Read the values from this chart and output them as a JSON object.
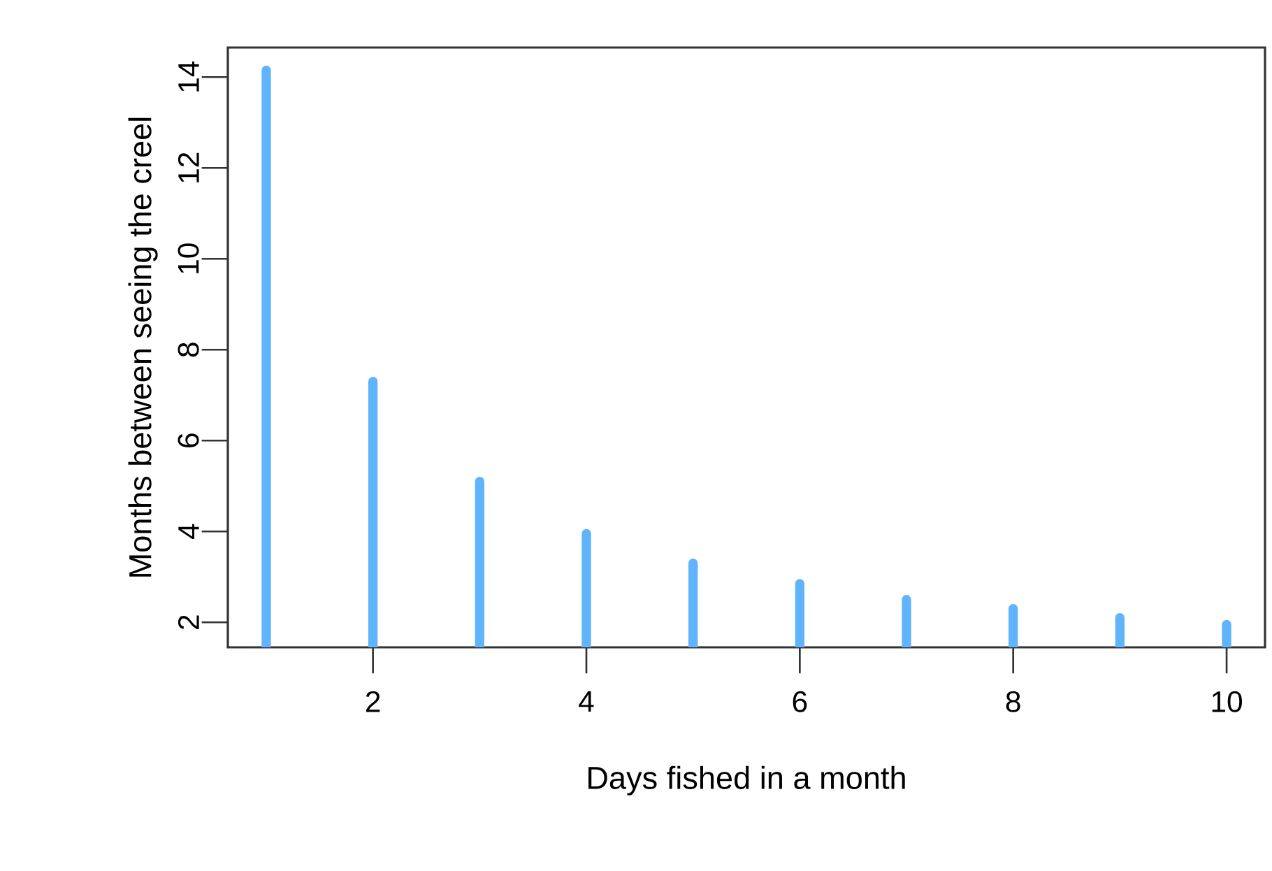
{
  "chart_data": {
    "type": "bar",
    "xlabel": "Days fished in a month",
    "ylabel": "Months between seeing the creel",
    "x": [
      1,
      2,
      3,
      4,
      5,
      6,
      7,
      8,
      9,
      10
    ],
    "values": [
      14.15,
      7.3,
      5.1,
      3.95,
      3.3,
      2.85,
      2.5,
      2.3,
      2.1,
      1.95
    ],
    "color": "#5fb4fc",
    "xlim": [
      0.64,
      10.36
    ],
    "xticks": [
      2,
      4,
      6,
      8,
      10
    ],
    "ylim": [
      1.45,
      14.65
    ],
    "yticks": [
      2,
      4,
      6,
      8,
      10,
      12,
      14
    ],
    "grid": false
  }
}
